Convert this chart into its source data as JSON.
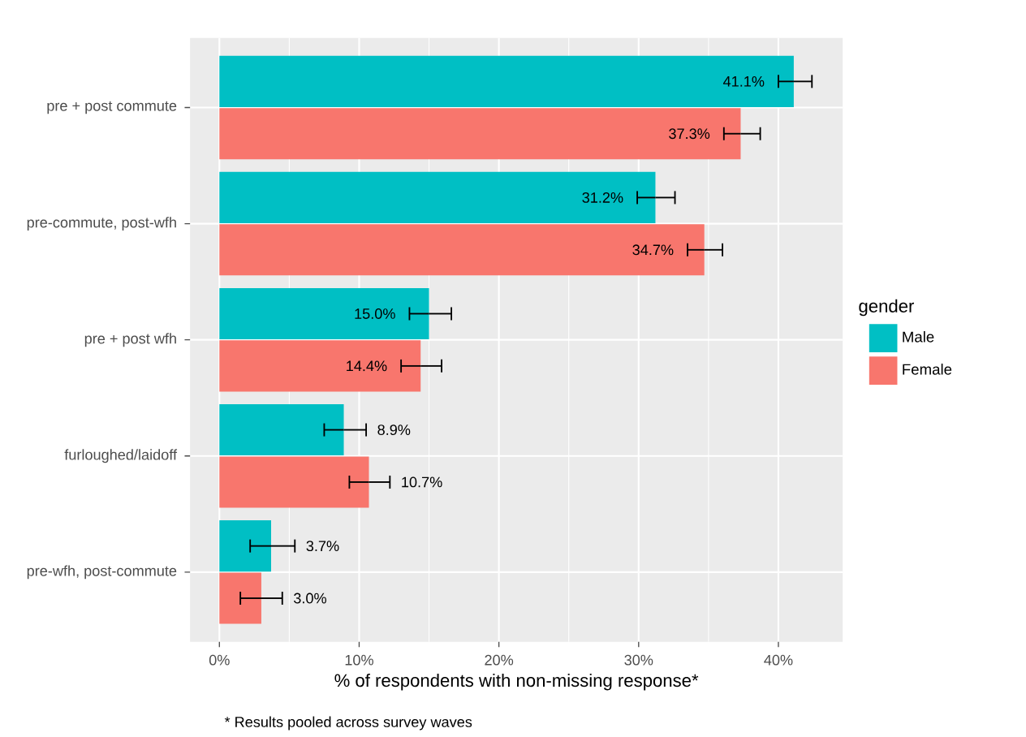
{
  "chart_data": {
    "type": "bar",
    "orientation": "horizontal",
    "categories": [
      "pre + post commute",
      "pre-commute, post-wfh",
      "pre + post wfh",
      "furloughed/laidoff",
      "pre-wfh, post-commute"
    ],
    "series": [
      {
        "name": "Male",
        "color": "#00bfc4",
        "values": [
          41.1,
          31.2,
          15.0,
          8.9,
          3.7
        ],
        "errors": [
          [
            40.0,
            42.4
          ],
          [
            29.9,
            32.6
          ],
          [
            13.6,
            16.6
          ],
          [
            7.5,
            10.5
          ],
          [
            2.2,
            5.4
          ]
        ],
        "value_labels": [
          "41.1%",
          "31.2%",
          "15.0%",
          "8.9%",
          "3.7%"
        ]
      },
      {
        "name": "Female",
        "color": "#f8766d",
        "values": [
          37.3,
          34.7,
          14.4,
          10.7,
          3.0
        ],
        "errors": [
          [
            36.1,
            38.7
          ],
          [
            33.5,
            36.0
          ],
          [
            13.0,
            15.9
          ],
          [
            9.3,
            12.2
          ],
          [
            1.5,
            4.5
          ]
        ],
        "value_labels": [
          "37.3%",
          "34.7%",
          "14.4%",
          "10.7%",
          "3.0%"
        ]
      }
    ],
    "xlim": [
      -2.1,
      44.6
    ],
    "xticks": [
      {
        "value": 0,
        "label": "0%"
      },
      {
        "value": 10,
        "label": "10%"
      },
      {
        "value": 20,
        "label": "20%"
      },
      {
        "value": 30,
        "label": "30%"
      },
      {
        "value": 40,
        "label": "40%"
      }
    ],
    "xlabel": "% of respondents with non-missing response*",
    "legend_title": "gender",
    "legend": "right",
    "grid": true,
    "annotations": [
      "* Results pooled across survey waves"
    ]
  }
}
